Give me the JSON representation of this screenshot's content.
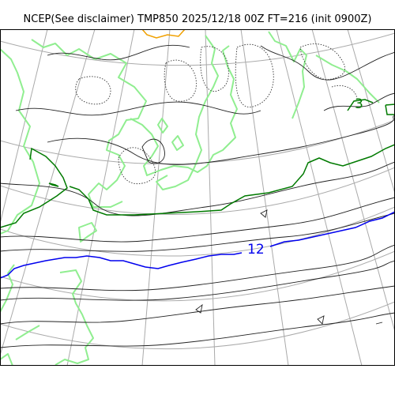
{
  "title": "NCEP(See disclaimer) TMP850 2025/12/18 00Z FT=216 (init 0900Z)",
  "contour_labels": {
    "isotherm_12": "12",
    "isotherm_3": "3"
  },
  "colors": {
    "background": "#ffffff",
    "coastline": "#90ee90",
    "graticule": "#aaaaaa",
    "isotherm_minor": "#000000",
    "isotherm_12": "#0000ee",
    "isotherm_3": "#007a00",
    "isotherm_warm": "#f0a000",
    "frame": "#000000"
  }
}
